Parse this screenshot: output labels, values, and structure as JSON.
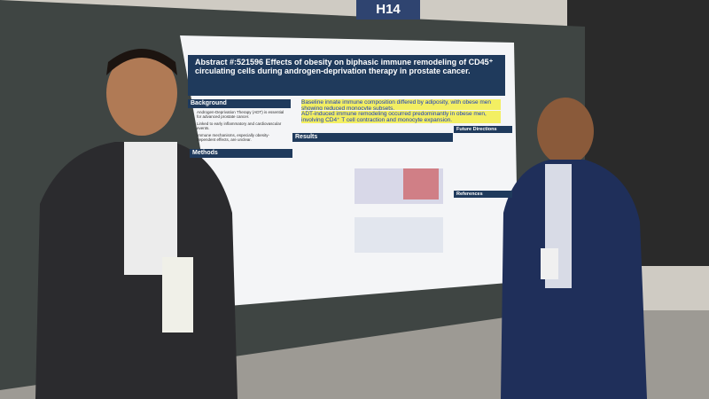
{
  "sign": "H14",
  "poster": {
    "title": "Abstract #:521596 Effects of obesity on biphasic immune remodeling of CD45⁺ circulating cells during androgen-deprivation therapy in prostate cancer.",
    "background": {
      "heading": "Background",
      "items": [
        "Androgen-Deprivation Therapy (ADT) is essential for advanced prostate cancer.",
        "Linked to early inflammatory and cardiovascular events.",
        "Immune mechanisms, especially obesity-dependent effects, are unclear."
      ]
    },
    "methods": {
      "heading": "Methods"
    },
    "results": {
      "heading": "Results"
    },
    "highlights": [
      "Baseline innate immune composition differed by adiposity, with obese men showing reduced monocyte subsets.",
      "ADT-induced immune remodeling occurred predominantly in obese men, involving CD4⁺ T cell contraction and monocyte expansion."
    ],
    "future": {
      "heading": "Future Directions"
    },
    "references": {
      "heading": "References"
    }
  }
}
